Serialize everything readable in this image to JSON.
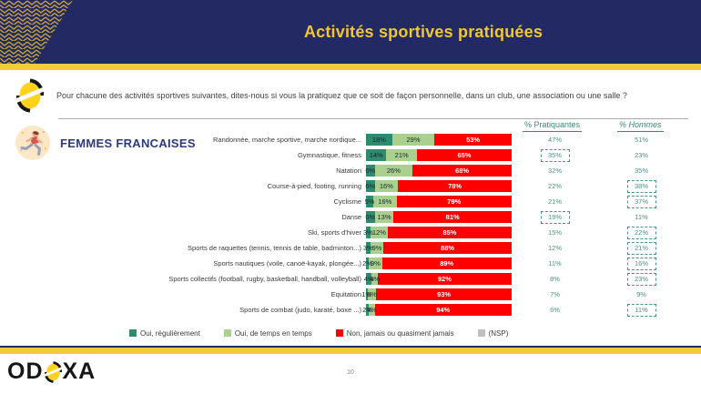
{
  "header": {
    "title": "Activités sportives pratiquées"
  },
  "question": {
    "text": "Pour chacune des activités sportives suivantes, dites-nous si vous la pratiquez que ce soit de façon personnelle, dans un club, une association ou une salle ?"
  },
  "population": {
    "label": "FEMMES FRANCAISES",
    "icon": "runner-icon"
  },
  "columns": {
    "pratiquantes": "% Pratiquantes",
    "hommes": "% Hommes"
  },
  "chart_data": {
    "type": "bar",
    "stacked": true,
    "orientation": "horizontal",
    "xlim": [
      0,
      100
    ],
    "unit": "%",
    "categories": [
      "Randonnée, marche sportive, marche nordique...",
      "Gymnastique, fitness",
      "Natation",
      "Course-à-pied, footing, running",
      "Cyclisme",
      "Danse",
      "Ski, sports d'hiver",
      "Sports de raquettes (tennis, tennis de table, badminton...)",
      "Sports nautiques (voile, canoë-kayak, plongée...)",
      "Sports collectifs (football, rugby, basketball, handball, volleyball)",
      "Equitation",
      "Sports de combat (judo, karaté, boxe ...)"
    ],
    "series": [
      {
        "name": "Oui, régulièrement",
        "color": "#2E8B6E",
        "values": [
          18,
          14,
          6,
          6,
          5,
          6,
          3,
          3,
          2,
          4,
          1,
          2
        ]
      },
      {
        "name": "Oui, de temps en temps",
        "color": "#A9D08E",
        "values": [
          29,
          21,
          26,
          16,
          16,
          13,
          12,
          9,
          9,
          4,
          6,
          4
        ]
      },
      {
        "name": "Non, jamais ou quasiment jamais",
        "color": "#FF0000",
        "values": [
          53,
          65,
          68,
          78,
          79,
          81,
          85,
          88,
          89,
          92,
          93,
          94
        ]
      }
    ],
    "pratiquantes": [
      47,
      35,
      32,
      22,
      21,
      19,
      15,
      12,
      11,
      8,
      7,
      6
    ],
    "pratiquantes_boxed": [
      false,
      true,
      false,
      false,
      false,
      true,
      false,
      false,
      false,
      false,
      false,
      false
    ],
    "hommes": [
      51,
      23,
      35,
      38,
      37,
      11,
      22,
      21,
      16,
      23,
      9,
      11
    ],
    "hommes_boxed": [
      false,
      false,
      false,
      true,
      true,
      false,
      true,
      true,
      true,
      true,
      false,
      true
    ]
  },
  "legend": {
    "items": [
      {
        "label": "Oui, régulièrement",
        "color": "#2E8B6E"
      },
      {
        "label": "Oui, de temps en temps",
        "color": "#A9D08E"
      },
      {
        "label": "Non, jamais ou quasiment jamais",
        "color": "#FF0000"
      },
      {
        "label": "(NSP)",
        "color": "#BFBFBF"
      }
    ]
  },
  "colors": {
    "navy": "#232A63",
    "gold": "#F2CB3D",
    "teal_text": "#4E9087",
    "regular_green": "#2E8B6E",
    "occasional_green": "#A9D08E",
    "never_red": "#FF0000",
    "nsp_gray": "#BFBFBF"
  },
  "footer": {
    "logo": {
      "left": "OD",
      "right": "XA"
    },
    "page": "10"
  }
}
